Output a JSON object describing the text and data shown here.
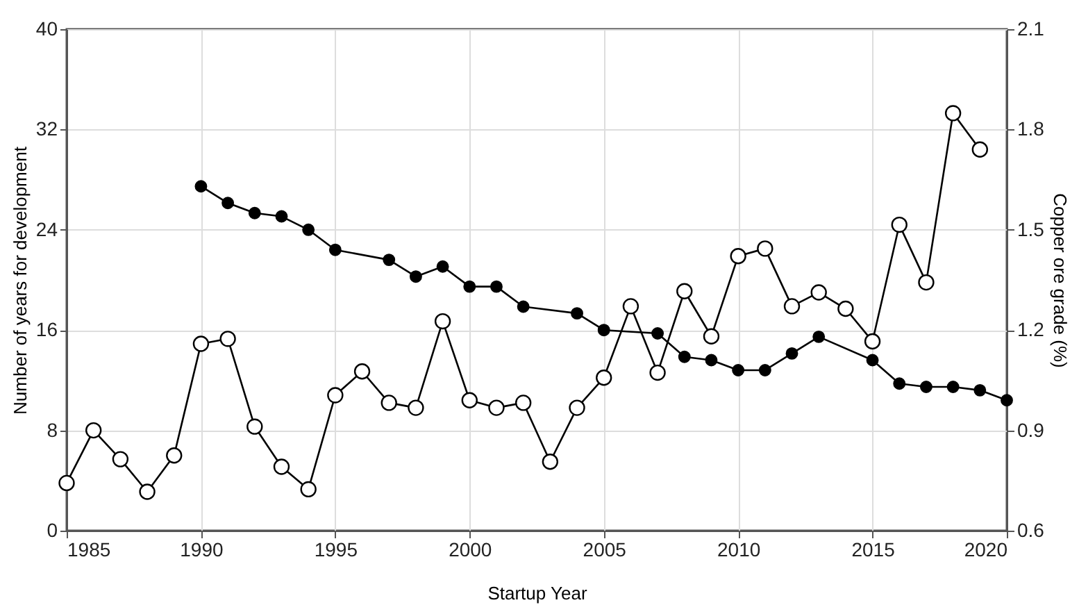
{
  "chart_data": {
    "type": "line",
    "xlabel": "Startup Year",
    "ylabel": "Number of years for development",
    "y2label": "Copper ore grade (%)",
    "xlim": [
      1985,
      2020
    ],
    "xticks": [
      1985,
      1990,
      1995,
      2000,
      2005,
      2010,
      2015,
      2020
    ],
    "ylim": [
      0,
      40
    ],
    "yticks": [
      0,
      8,
      16,
      24,
      32,
      40
    ],
    "y2lim": [
      0.6,
      2.1
    ],
    "y2ticks": [
      0.6,
      0.9,
      1.2,
      1.5,
      1.8,
      2.1
    ],
    "grid": true,
    "marker": "circle",
    "line_style": "solid",
    "series": [
      {
        "color": "#000000",
        "x": [
          1985,
          1986,
          1987,
          1988,
          1989,
          1990,
          1991,
          1992,
          1993,
          1994,
          1995,
          1996,
          1997,
          1998,
          1999,
          2000,
          2001,
          2002,
          2003,
          2004,
          2005,
          2006,
          2007,
          2008,
          2009,
          2010,
          2011,
          2012,
          2013,
          2014,
          2015,
          2016,
          2017,
          2018,
          2019
        ],
        "values": [
          3.8,
          8.0,
          5.7,
          3.1,
          6.0,
          14.9,
          15.3,
          8.3,
          5.1,
          3.3,
          10.8,
          12.7,
          10.2,
          9.8,
          16.7,
          10.4,
          9.8,
          10.2,
          5.5,
          9.8,
          12.2,
          17.9,
          12.6,
          19.1,
          15.5,
          21.9,
          22.5,
          17.9,
          19.0,
          17.7,
          15.1,
          24.4,
          19.8,
          33.3,
          30.4
        ]
      },
      {
        "color": "#000000",
        "axis": "y2",
        "x": [
          1990,
          1991,
          1992,
          1993,
          1994,
          1995,
          1997,
          1998,
          1999,
          2000,
          2001,
          2002,
          2004,
          2005,
          2007,
          2008,
          2009,
          2010,
          2011,
          2012,
          2013,
          2015,
          2016,
          2017,
          2018,
          2019,
          2020
        ],
        "values": [
          1.63,
          1.58,
          1.55,
          1.54,
          1.5,
          1.44,
          1.41,
          1.36,
          1.39,
          1.33,
          1.33,
          1.27,
          1.25,
          1.2,
          1.19,
          1.12,
          1.11,
          1.08,
          1.08,
          1.13,
          1.18,
          1.11,
          1.04,
          1.03,
          1.03,
          1.02,
          0.99
        ]
      }
    ]
  }
}
